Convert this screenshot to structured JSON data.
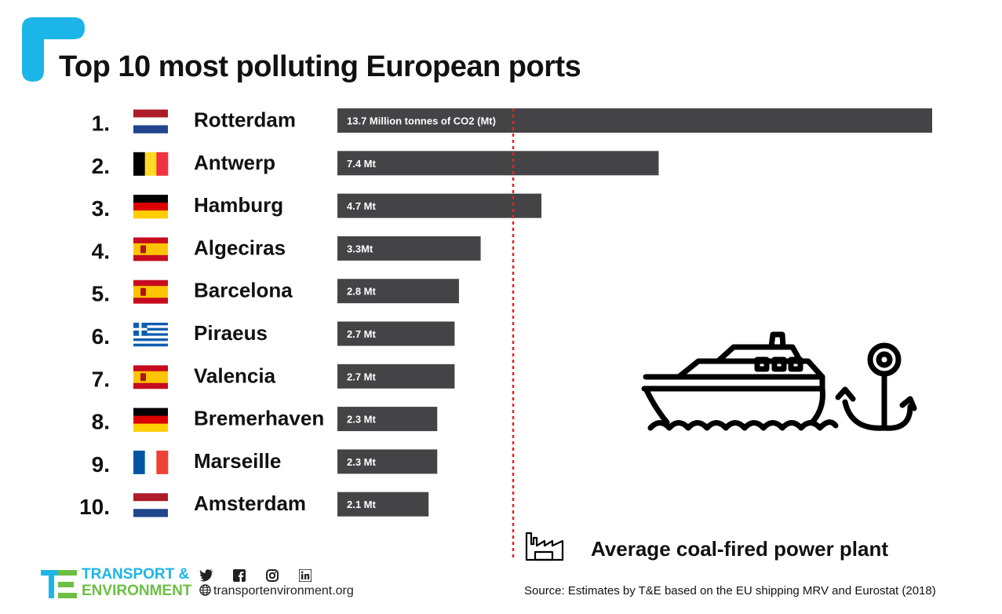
{
  "title": "Top 10 most polluting European ports",
  "chart_data": {
    "type": "bar",
    "orientation": "horizontal",
    "title": "Top 10 most polluting European ports",
    "unit": "Million tonnes of CO2 (Mt)",
    "categories": [
      "Rotterdam",
      "Antwerp",
      "Hamburg",
      "Algeciras",
      "Barcelona",
      "Piraeus",
      "Valencia",
      "Bremerhaven",
      "Marseille",
      "Amsterdam"
    ],
    "ranks": [
      "1.",
      "2.",
      "3.",
      "4.",
      "5.",
      "6.",
      "7.",
      "8.",
      "9.",
      "10."
    ],
    "flags": [
      "netherlands",
      "belgium",
      "germany",
      "spain",
      "spain",
      "greece",
      "spain",
      "germany",
      "france",
      "netherlands"
    ],
    "values": [
      13.7,
      7.4,
      4.7,
      3.3,
      2.8,
      2.7,
      2.7,
      2.3,
      2.3,
      2.1
    ],
    "value_labels": [
      "13.7 Million tonnes of CO2 (Mt)",
      "7.4 Mt",
      "4.7 Mt",
      "3.3Mt",
      "2.8 Mt",
      "2.7 Mt",
      "2.7 Mt",
      "2.3 Mt",
      "2.3 Mt",
      "2.1 Mt"
    ],
    "reference_line": {
      "label": "Average coal-fired power plant",
      "style": "red-dotted"
    },
    "bar_color": "#444446",
    "reference_color": "#e0242b"
  },
  "legend": {
    "label": "Average coal-fired power plant",
    "icon": "factory-icon"
  },
  "source": "Source: Estimates by T&E based on the EU shipping MRV and Eurostat (2018)",
  "footer": {
    "logo_line1": "TRANSPORT &",
    "logo_line2": "ENVIRONMENT",
    "website": "transportenvironment.org",
    "social_icons": [
      "twitter-icon",
      "facebook-icon",
      "instagram-icon",
      "linkedin-icon"
    ]
  },
  "colors": {
    "accent_blue": "#1cb5e8",
    "accent_green": "#6cbf44",
    "bar": "#444446",
    "reference": "#e0242b"
  }
}
